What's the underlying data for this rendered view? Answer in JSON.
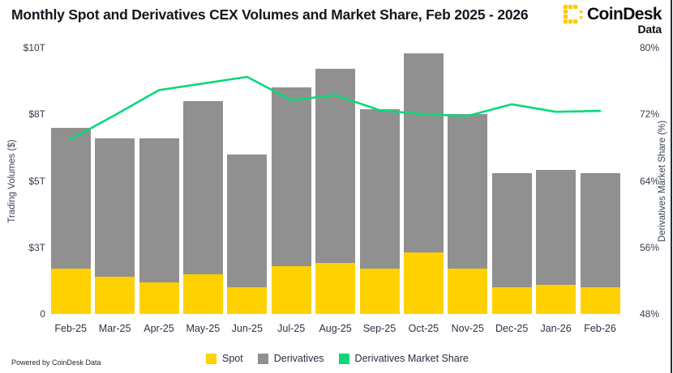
{
  "header": {
    "title": "Monthly Spot and Derivatives CEX Volumes and Market Share, Feb 2025 - 2026"
  },
  "logo": {
    "brand": "CoinDesk",
    "sub": "Data"
  },
  "chart_data": {
    "type": "bar",
    "subtype": "stacked-bars-with-line-overlay",
    "categories": [
      "Feb-25",
      "Mar-25",
      "Apr-25",
      "May-25",
      "Jun-25",
      "Jul-25",
      "Aug-25",
      "Sep-25",
      "Oct-25",
      "Nov-25",
      "Dec-25",
      "Jan-26",
      "Feb-26"
    ],
    "series": [
      {
        "name": "Spot",
        "type": "bar",
        "axis": "left",
        "unit": "$T",
        "values": [
          1.7,
          1.4,
          1.2,
          1.5,
          1.0,
          1.8,
          1.9,
          1.7,
          2.3,
          1.7,
          1.0,
          1.1,
          1.0
        ]
      },
      {
        "name": "Derivatives",
        "type": "bar",
        "axis": "left",
        "unit": "$T",
        "values": [
          5.3,
          5.2,
          5.4,
          6.5,
          5.0,
          6.7,
          7.3,
          6.0,
          7.5,
          5.8,
          4.3,
          4.3,
          4.3
        ]
      },
      {
        "name": "Derivatives Market Share",
        "type": "line",
        "axis": "right",
        "unit": "%",
        "values": [
          69.0,
          71.9,
          74.9,
          75.7,
          76.5,
          73.7,
          74.3,
          72.5,
          72.0,
          71.8,
          73.2,
          72.3,
          72.4
        ]
      }
    ],
    "y_left": {
      "title": "Trading Volumes ($)",
      "range": [
        0,
        10
      ],
      "ticks": [
        {
          "label": "$10T",
          "value": 10
        },
        {
          "label": "$8T",
          "value": 7.5
        },
        {
          "label": "$5T",
          "value": 5
        },
        {
          "label": "$3T",
          "value": 2.5
        },
        {
          "label": "0",
          "value": 0
        }
      ]
    },
    "y_right": {
      "title": "Derivatives Market Share (%)",
      "range": [
        48,
        80
      ],
      "ticks": [
        {
          "label": "80%",
          "value": 80
        },
        {
          "label": "72%",
          "value": 72
        },
        {
          "label": "64%",
          "value": 64
        },
        {
          "label": "56%",
          "value": 56
        },
        {
          "label": "48%",
          "value": 48
        }
      ]
    },
    "grid": false,
    "legend_position": "bottom"
  },
  "legend": {
    "items": [
      {
        "label": "Spot",
        "color": "#FFD100"
      },
      {
        "label": "Derivatives",
        "color": "#909090"
      },
      {
        "label": "Derivatives Market Share",
        "color": "#0BD87A"
      }
    ]
  },
  "footer": {
    "powered_by": "Powered by CoinDesk Data"
  },
  "colors": {
    "spot": "#FFD100",
    "derivatives": "#909090",
    "market_share_line": "#0BD87A",
    "title_text": "#13151f",
    "axis_text": "#333b4b",
    "logo_yellow": "#FFC800",
    "border": "#222c44"
  }
}
